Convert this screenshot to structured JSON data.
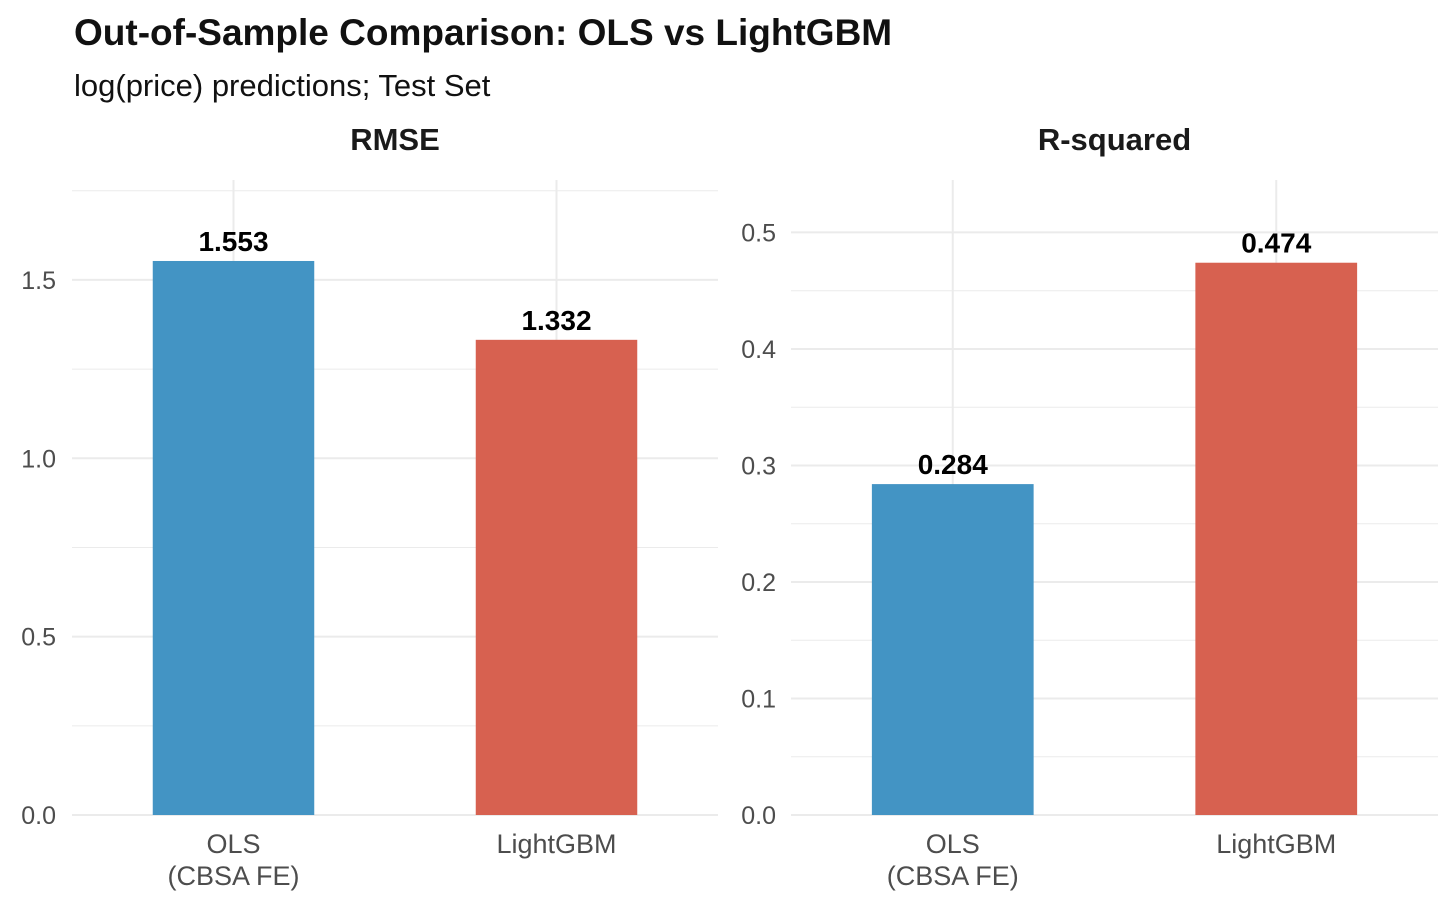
{
  "title": "Out-of-Sample Comparison: OLS vs LightGBM",
  "subtitle": "log(price) predictions; Test Set",
  "colors": {
    "ols": "#4394C4",
    "lightgbm": "#D76150",
    "grid": "#EBEBEB",
    "tick_text": "#4D4D4D",
    "label_text": "#000000"
  },
  "chart_data": [
    {
      "type": "bar",
      "facet": "RMSE",
      "categories": [
        "OLS\n(CBSA FE)",
        "LightGBM"
      ],
      "values": [
        1.553,
        1.332
      ],
      "value_labels": [
        "1.553",
        "1.332"
      ],
      "yticks": [
        0.0,
        0.5,
        1.0,
        1.5
      ],
      "ytick_labels": [
        "0.0",
        "0.5",
        "1.0",
        "1.5"
      ],
      "ylim": [
        0,
        1.78
      ],
      "xlabel": "",
      "ylabel": "",
      "grid": true
    },
    {
      "type": "bar",
      "facet": "R-squared",
      "categories": [
        "OLS\n(CBSA FE)",
        "LightGBM"
      ],
      "values": [
        0.284,
        0.474
      ],
      "value_labels": [
        "0.284",
        "0.474"
      ],
      "yticks": [
        0.0,
        0.1,
        0.2,
        0.3,
        0.4,
        0.5
      ],
      "ytick_labels": [
        "0.0",
        "0.1",
        "0.2",
        "0.3",
        "0.4",
        "0.5"
      ],
      "ylim": [
        0,
        0.545
      ],
      "xlabel": "",
      "ylabel": "",
      "grid": true
    }
  ]
}
